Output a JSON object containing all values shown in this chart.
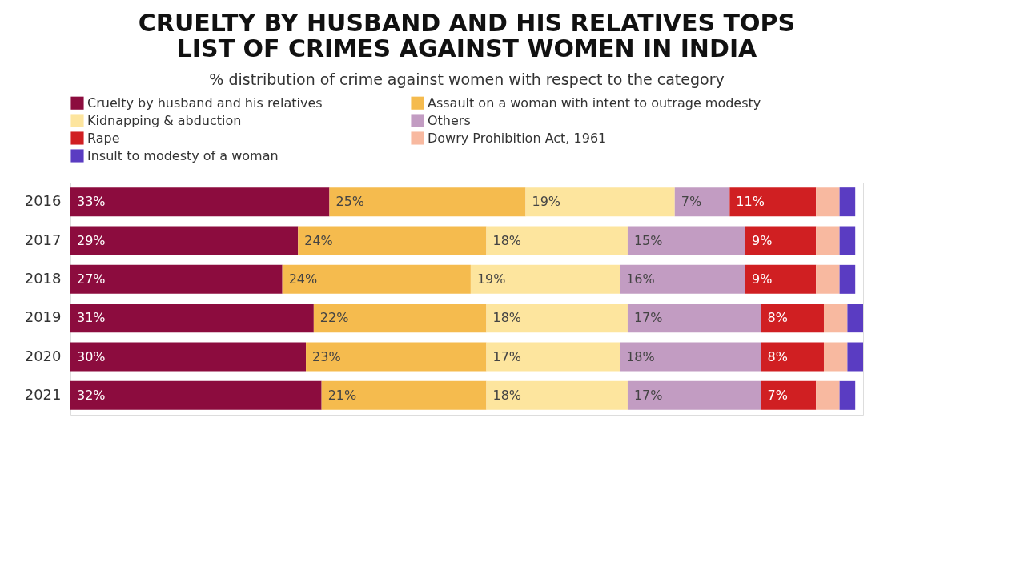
{
  "chart_data": {
    "type": "bar",
    "orientation": "horizontal",
    "stacked": true,
    "title": "CRUELTY BY HUSBAND AND HIS RELATIVES TOPS\nLIST OF CRIMES AGAINST WOMEN IN INDIA",
    "subtitle": "% distribution of crime against women with respect to the category",
    "categories": [
      "2016",
      "2017",
      "2018",
      "2019",
      "2020",
      "2021"
    ],
    "legend": "top left",
    "grid": false,
    "series": [
      {
        "name": "Cruelty by husband and his relatives",
        "color": "#8c0c3e",
        "values": [
          33,
          29,
          27,
          31,
          30,
          32
        ],
        "value_labels": [
          "33%",
          "29%",
          "27%",
          "31%",
          "30%",
          "32%"
        ]
      },
      {
        "name": "Assault on a woman with intent to outrage modesty",
        "color": "#f5bb4e",
        "values": [
          25,
          24,
          24,
          22,
          23,
          21
        ],
        "value_labels": [
          "25%",
          "24%",
          "24%",
          "22%",
          "23%",
          "21%"
        ]
      },
      {
        "name": "Kidnapping & abduction",
        "color": "#fde59e",
        "values": [
          19,
          18,
          19,
          18,
          17,
          18
        ],
        "value_labels": [
          "19%",
          "18%",
          "19%",
          "18%",
          "17%",
          "18%"
        ]
      },
      {
        "name": "Others",
        "color": "#c29cc2",
        "values": [
          7,
          15,
          16,
          17,
          18,
          17
        ],
        "value_labels": [
          "7%",
          "15%",
          "16%",
          "17%",
          "18%",
          "17%"
        ]
      },
      {
        "name": "Rape",
        "color": "#d01f22",
        "values": [
          11,
          9,
          9,
          8,
          8,
          7
        ],
        "value_labels": [
          "11%",
          "9%",
          "9%",
          "8%",
          "8%",
          "7%"
        ]
      },
      {
        "name": "Dowry Prohibition Act, 1961",
        "color": "#f8b9a0",
        "values": [
          3,
          3,
          3,
          3,
          3,
          3
        ],
        "value_labels": [
          null,
          null,
          null,
          null,
          null,
          null
        ]
      },
      {
        "name": "Insult to modesty of a woman",
        "color": "#5a3cc2",
        "values": [
          2,
          2,
          2,
          2,
          2,
          2
        ],
        "value_labels": [
          null,
          null,
          null,
          null,
          null,
          null
        ]
      }
    ]
  }
}
